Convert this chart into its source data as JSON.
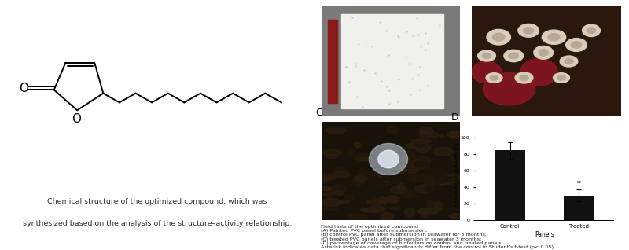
{
  "background_color": "#ffffff",
  "left_caption_line1": "Chemical structure of the optimized compound, which was",
  "left_caption_line2": "synthesized based on the analysis of the structure–activity relationship.",
  "bar_categories": [
    "Control",
    "Treated"
  ],
  "bar_values": [
    85,
    30
  ],
  "bar_errors": [
    10,
    7
  ],
  "bar_color": "#111111",
  "bar_ylabel": "Area covered by biofoulers (%)",
  "bar_xlabel": "Panels",
  "bar_ylim": [
    0,
    110
  ],
  "bar_yticks": [
    0,
    20,
    40,
    60,
    80,
    100
  ],
  "right_caption_lines": [
    "Field tests of the optimized compound",
    "(A) Painted PVC panel before submersion;",
    "(B) control PVC panel after submersion in seawater for 3 months;",
    "(C) treated PVC panels after submersion in seawater 3 months;",
    "(D) percentage of coverage of biofoulers on control and treated panels.",
    "Asterisk indicates data that significantly differ from the control in Student’s t-test (p< 0.05)."
  ],
  "panel_A_bg": "#7a7a7a",
  "panel_A_white": "#f0f0ec",
  "panel_A_red": "#8b1a1a",
  "panel_B_bg": "#2a180e",
  "panel_C_bg": "#1a1208",
  "panel_C_bright": "#c8d8e8"
}
